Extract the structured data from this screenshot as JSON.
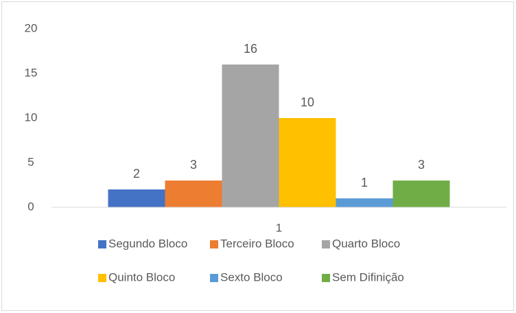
{
  "chart_data": {
    "type": "bar",
    "categories": [
      "1"
    ],
    "series": [
      {
        "name": "Segundo Bloco",
        "color": "#4472c4",
        "values": [
          2
        ]
      },
      {
        "name": "Terceiro Bloco",
        "color": "#ed7d31",
        "values": [
          3
        ]
      },
      {
        "name": "Quarto Bloco",
        "color": "#a5a5a5",
        "values": [
          16
        ]
      },
      {
        "name": "Quinto Bloco",
        "color": "#ffc000",
        "values": [
          10
        ]
      },
      {
        "name": "Sexto Bloco",
        "color": "#5b9bd5",
        "values": [
          1
        ]
      },
      {
        "name": "Sem Difinição",
        "color": "#70ad47",
        "values": [
          3
        ]
      }
    ],
    "ylim": [
      0,
      20
    ],
    "yticks": [
      0,
      5,
      10,
      15,
      20
    ],
    "grid": false,
    "legend": "bottom"
  }
}
